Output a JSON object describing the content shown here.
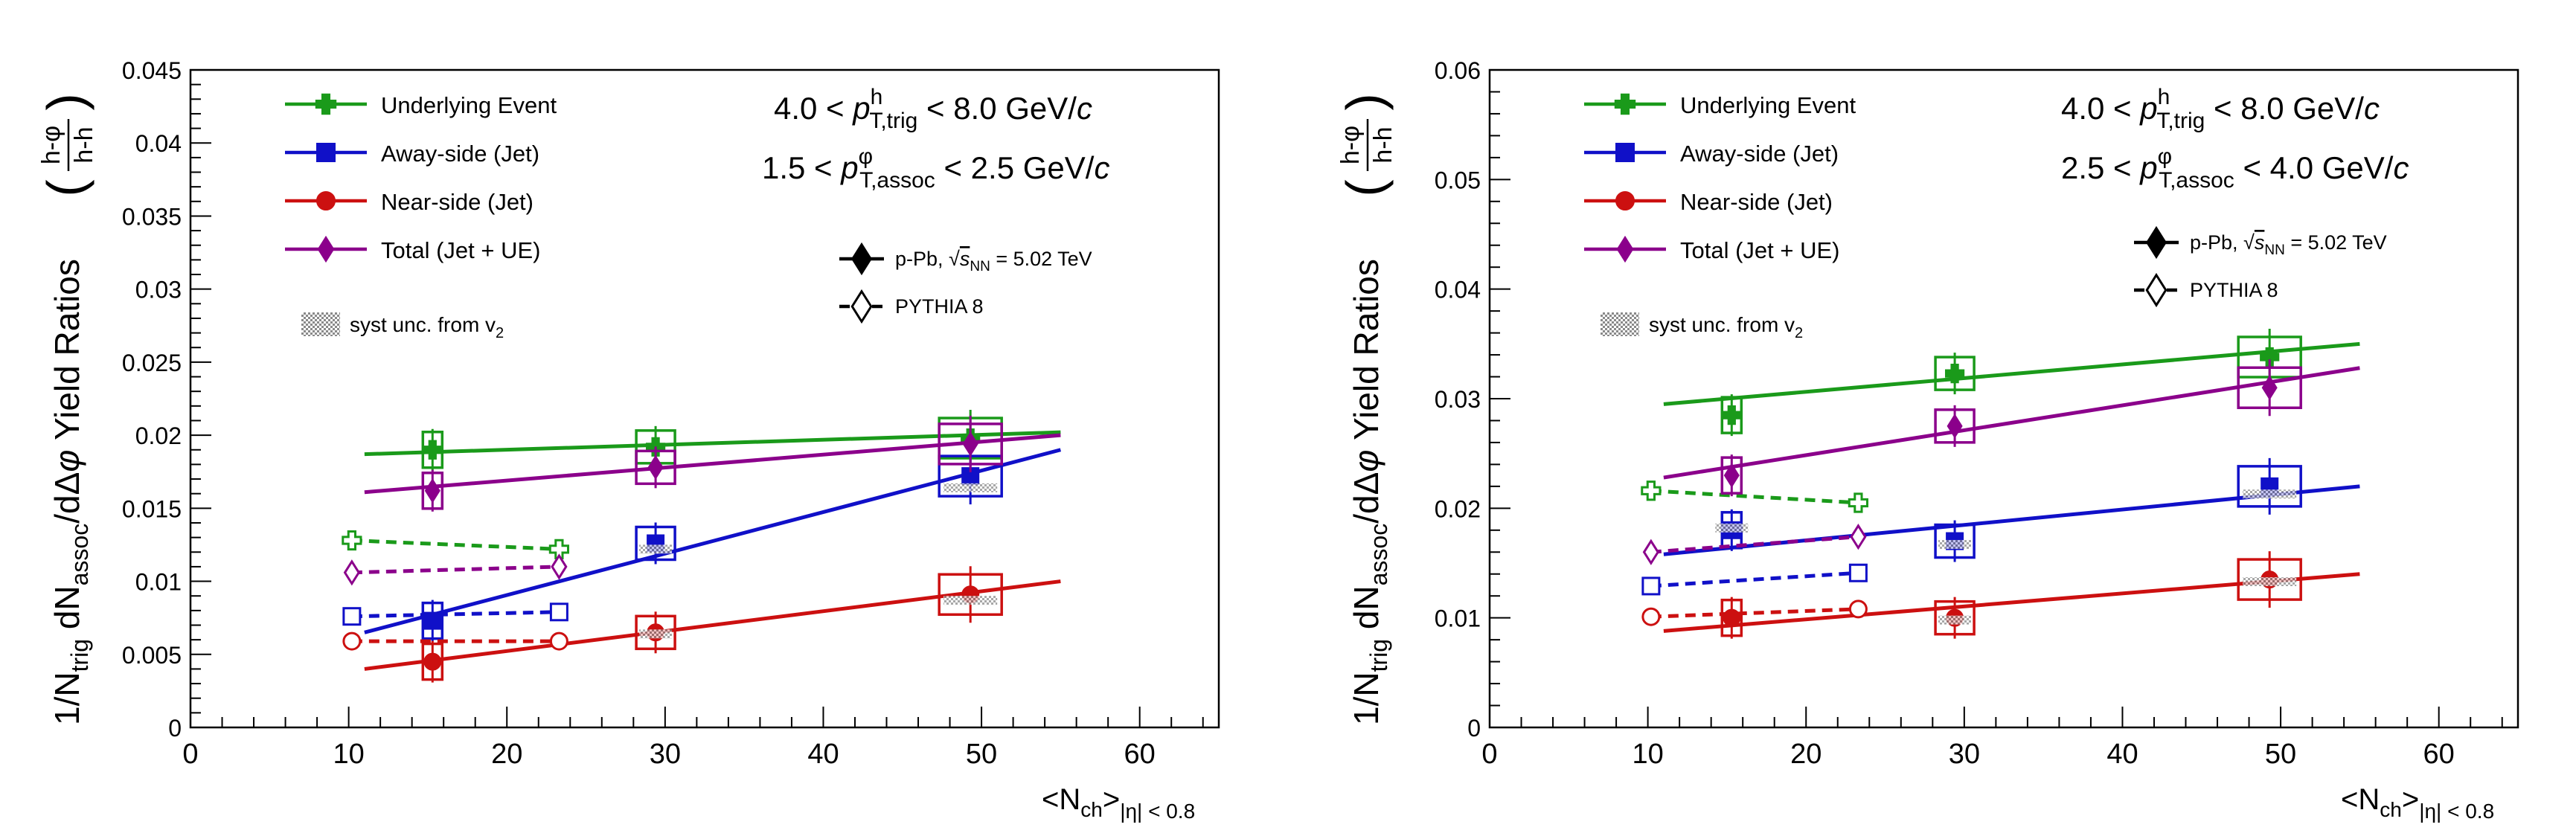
{
  "chart_data": [
    {
      "type": "scatter",
      "xlabel": "<N_ch>_|η| < 0.8",
      "ylabel": "1/N_trig dN_assoc/dΔφ Yield Ratios (h-φ / h-h)",
      "xlim": [
        0,
        65
      ],
      "ylim": [
        0,
        0.045
      ],
      "xticks": [
        "0",
        "10",
        "20",
        "30",
        "40",
        "50",
        "60"
      ],
      "yticks": [
        "0",
        "0.005",
        "0.01",
        "0.015",
        "0.02",
        "0.025",
        "0.03",
        "0.035",
        "0.04",
        "0.045"
      ],
      "grid": false,
      "legend_position": "top-left",
      "kinematics": [
        "4.0 < p_T,trig^h < 8.0 GeV/c",
        "1.5 < p_T,assoc^φ < 2.5 GeV/c"
      ],
      "syst_label": "syst unc. from v_2",
      "marker_legend": [
        "p-Pb, √s_NN = 5.02 TeV",
        "PYTHIA 8"
      ],
      "series": [
        {
          "name": "Underlying Event",
          "color": "#1a9a1a",
          "marker": "cross",
          "x": [
            15.3,
            29.4,
            49.3
          ],
          "y": [
            0.019,
            0.0192,
            0.0198
          ],
          "fit": [
            [
              11,
              0.0187
            ],
            [
              55,
              0.0202
            ]
          ],
          "pythia": {
            "x": [
              10.2,
              23.3
            ],
            "y": [
              0.0128,
              0.0122
            ]
          }
        },
        {
          "name": "Away-side (Jet)",
          "color": "#1010c8",
          "marker": "square",
          "x": [
            15.3,
            29.4,
            49.3
          ],
          "y": [
            0.0073,
            0.0126,
            0.0172
          ],
          "fit": [
            [
              11,
              0.0065
            ],
            [
              55,
              0.019
            ]
          ],
          "pythia": {
            "x": [
              10.2,
              23.3
            ],
            "y": [
              0.0076,
              0.0079
            ]
          }
        },
        {
          "name": "Near-side (Jet)",
          "color": "#cc1010",
          "marker": "circle",
          "x": [
            15.3,
            29.4,
            49.3
          ],
          "y": [
            0.0045,
            0.0065,
            0.0091
          ],
          "fit": [
            [
              11,
              0.004
            ],
            [
              55,
              0.01
            ]
          ],
          "pythia": {
            "x": [
              10.2,
              23.3
            ],
            "y": [
              0.0059,
              0.0059
            ]
          }
        },
        {
          "name": "Total (Jet + UE)",
          "color": "#8b008b",
          "marker": "diamond",
          "x": [
            15.3,
            29.4,
            49.3
          ],
          "y": [
            0.0162,
            0.0178,
            0.0194
          ],
          "fit": [
            [
              11,
              0.0161
            ],
            [
              55,
              0.02
            ]
          ],
          "pythia": {
            "x": [
              10.2,
              23.3
            ],
            "y": [
              0.0106,
              0.011
            ]
          }
        }
      ]
    },
    {
      "type": "scatter",
      "xlabel": "<N_ch>_|η| < 0.8",
      "ylabel": "1/N_trig dN_assoc/dΔφ Yield Ratios (h-φ / h-h)",
      "xlim": [
        0,
        65
      ],
      "ylim": [
        0,
        0.06
      ],
      "xticks": [
        "0",
        "10",
        "20",
        "30",
        "40",
        "50",
        "60"
      ],
      "yticks": [
        "0",
        "0.01",
        "0.02",
        "0.03",
        "0.04",
        "0.05",
        "0.06"
      ],
      "grid": false,
      "legend_position": "top-left",
      "kinematics": [
        "4.0 < p_T,trig^h < 8.0 GeV/c",
        "2.5 < p_T,assoc^φ < 4.0 GeV/c"
      ],
      "syst_label": "syst unc. from v_2",
      "marker_legend": [
        "p-Pb, √s_NN = 5.02 TeV",
        "PYTHIA 8"
      ],
      "series": [
        {
          "name": "Underlying Event",
          "color": "#1a9a1a",
          "marker": "cross",
          "x": [
            15.3,
            29.4,
            49.3
          ],
          "y": [
            0.0285,
            0.0323,
            0.0338
          ],
          "fit": [
            [
              11,
              0.0295
            ],
            [
              55,
              0.035
            ]
          ],
          "pythia": {
            "x": [
              10.2,
              23.3
            ],
            "y": [
              0.0216,
              0.0205
            ]
          }
        },
        {
          "name": "Away-side (Jet)",
          "color": "#1010c8",
          "marker": "square",
          "x": [
            15.3,
            29.4,
            49.3
          ],
          "y": [
            0.018,
            0.017,
            0.022
          ],
          "fit": [
            [
              11,
              0.0158
            ],
            [
              55,
              0.022
            ]
          ],
          "pythia": {
            "x": [
              10.2,
              23.3
            ],
            "y": [
              0.0129,
              0.0141
            ]
          }
        },
        {
          "name": "Near-side (Jet)",
          "color": "#cc1010",
          "marker": "circle",
          "x": [
            15.3,
            29.4,
            49.3
          ],
          "y": [
            0.01,
            0.01,
            0.0135
          ],
          "fit": [
            [
              11,
              0.0088
            ],
            [
              55,
              0.014
            ]
          ],
          "pythia": {
            "x": [
              10.2,
              23.3
            ],
            "y": [
              0.0101,
              0.0108
            ]
          }
        },
        {
          "name": "Total (Jet + UE)",
          "color": "#8b008b",
          "marker": "diamond",
          "x": [
            15.3,
            29.4,
            49.3
          ],
          "y": [
            0.023,
            0.0275,
            0.031
          ],
          "fit": [
            [
              11,
              0.0228
            ],
            [
              55,
              0.0328
            ]
          ],
          "pythia": {
            "x": [
              10.2,
              23.3
            ],
            "y": [
              0.016,
              0.0174
            ]
          }
        }
      ]
    }
  ]
}
